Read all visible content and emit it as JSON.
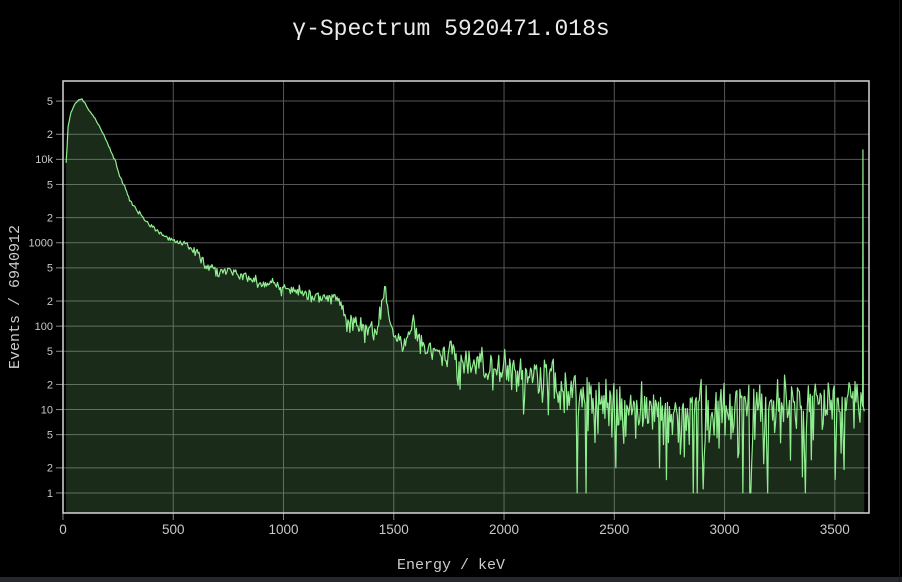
{
  "window": {
    "background": "#000000",
    "taskbar_strip_color": "#26262e",
    "right_edge_color": "#1a1a1a"
  },
  "chart_data": {
    "type": "area",
    "title": "γ-Spectrum 5920471.018s",
    "xlabel": "Energy / keV",
    "ylabel": "Events / 6940912",
    "x_range": [
      0,
      3655
    ],
    "y_range": [
      0.575,
      87000
    ],
    "y_scale": "log",
    "x_scale": "linear",
    "grid": true,
    "legend": "none",
    "colors": {
      "line": "#90ee90",
      "fill": "rgba(144,238,144,0.18)",
      "grid": "#565656",
      "tick": "#8a8a8a",
      "frame": "#d6d6d6",
      "tick_label": "#c9c9c9",
      "title": "#ebebeb",
      "axis_label": "#cccccc",
      "background": "#000000"
    },
    "x_ticks": [
      0,
      500,
      1000,
      1500,
      2000,
      2500,
      3000,
      3500
    ],
    "y_ticks": [
      {
        "value": 50000,
        "label": "5"
      },
      {
        "value": 20000,
        "label": "2"
      },
      {
        "value": 10000,
        "label": "10k"
      },
      {
        "value": 5000,
        "label": "5"
      },
      {
        "value": 2000,
        "label": "2"
      },
      {
        "value": 1000,
        "label": "1000"
      },
      {
        "value": 500,
        "label": "5"
      },
      {
        "value": 200,
        "label": "2"
      },
      {
        "value": 100,
        "label": "100"
      },
      {
        "value": 50,
        "label": "5"
      },
      {
        "value": 20,
        "label": "2"
      },
      {
        "value": 10,
        "label": "10"
      },
      {
        "value": 5,
        "label": "5"
      },
      {
        "value": 2,
        "label": "2"
      },
      {
        "value": 1,
        "label": "1"
      }
    ],
    "spectrum": {
      "bin_width_kev": 4.5,
      "e_min": 14,
      "e_max": 3622,
      "envelope": [
        [
          14,
          9000
        ],
        [
          18,
          13000
        ],
        [
          22,
          24000
        ],
        [
          35,
          36000
        ],
        [
          54,
          46000
        ],
        [
          72,
          52000
        ],
        [
          86,
          53000
        ],
        [
          100,
          47000
        ],
        [
          120,
          38000
        ],
        [
          145,
          31000
        ],
        [
          168,
          24000
        ],
        [
          190,
          18500
        ],
        [
          212,
          13500
        ],
        [
          230,
          10500
        ],
        [
          236,
          9800
        ],
        [
          242,
          8600
        ],
        [
          258,
          6200
        ],
        [
          281,
          4700
        ],
        [
          304,
          3200
        ],
        [
          327,
          2600
        ],
        [
          349,
          2250
        ],
        [
          372,
          1850
        ],
        [
          395,
          1600
        ],
        [
          417,
          1450
        ],
        [
          440,
          1300
        ],
        [
          462,
          1230
        ],
        [
          485,
          1120
        ],
        [
          508,
          1040
        ],
        [
          530,
          990
        ],
        [
          553,
          950
        ],
        [
          576,
          930
        ],
        [
          585,
          820
        ],
        [
          594,
          800
        ],
        [
          609,
          850
        ],
        [
          620,
          700
        ],
        [
          644,
          560
        ],
        [
          666,
          500
        ],
        [
          700,
          470
        ],
        [
          757,
          445
        ],
        [
          800,
          405
        ],
        [
          848,
          375
        ],
        [
          893,
          340
        ],
        [
          938,
          315
        ],
        [
          984,
          285
        ],
        [
          1029,
          262
        ],
        [
          1074,
          250
        ],
        [
          1120,
          240
        ],
        [
          1165,
          232
        ],
        [
          1210,
          226
        ],
        [
          1240,
          230
        ],
        [
          1252,
          185
        ],
        [
          1262,
          150
        ],
        [
          1279,
          122
        ],
        [
          1301,
          112
        ],
        [
          1324,
          108
        ],
        [
          1347,
          100
        ],
        [
          1369,
          95
        ],
        [
          1391,
          91
        ],
        [
          1414,
          88
        ],
        [
          1430,
          95
        ],
        [
          1445,
          160
        ],
        [
          1460,
          340
        ],
        [
          1475,
          150
        ],
        [
          1490,
          92
        ],
        [
          1505,
          75
        ],
        [
          1527,
          66
        ],
        [
          1550,
          62
        ],
        [
          1565,
          68
        ],
        [
          1580,
          95
        ],
        [
          1591,
          126
        ],
        [
          1602,
          88
        ],
        [
          1614,
          68
        ],
        [
          1641,
          56
        ],
        [
          1686,
          50
        ],
        [
          1732,
          46
        ],
        [
          1777,
          42
        ],
        [
          1822,
          39
        ],
        [
          1868,
          36.5
        ],
        [
          1913,
          34.5
        ],
        [
          1958,
          32
        ],
        [
          2004,
          30
        ],
        [
          2058,
          27.5
        ],
        [
          2117,
          25.5
        ],
        [
          2185,
          22.5
        ],
        [
          2253,
          19
        ],
        [
          2321,
          15.5
        ],
        [
          2389,
          13
        ],
        [
          2457,
          11.2
        ],
        [
          2502,
          10.6
        ],
        [
          2540,
          10.2
        ],
        [
          2560,
          12.5
        ],
        [
          2580,
          10.2
        ],
        [
          2661,
          10
        ],
        [
          2750,
          9.6
        ],
        [
          2888,
          9.5
        ],
        [
          3000,
          9.7
        ],
        [
          3114,
          10
        ],
        [
          3228,
          10.3
        ],
        [
          3341,
          10.6
        ],
        [
          3455,
          11
        ],
        [
          3568,
          11.5
        ],
        [
          3622,
          12
        ]
      ],
      "peaks_kev": [
        1460,
        1591
      ],
      "overflow_bin": {
        "energy": 3627.5,
        "counts": 13000
      },
      "dips": [
        [
          2856,
          1
        ],
        [
          2706,
          2
        ],
        [
          3395,
          2.5
        ]
      ],
      "noise": {
        "model": "gaussian-poisson",
        "scale": 1.5,
        "seed": 1337,
        "clamp_sigma": 3.2,
        "floor": 1
      }
    }
  }
}
